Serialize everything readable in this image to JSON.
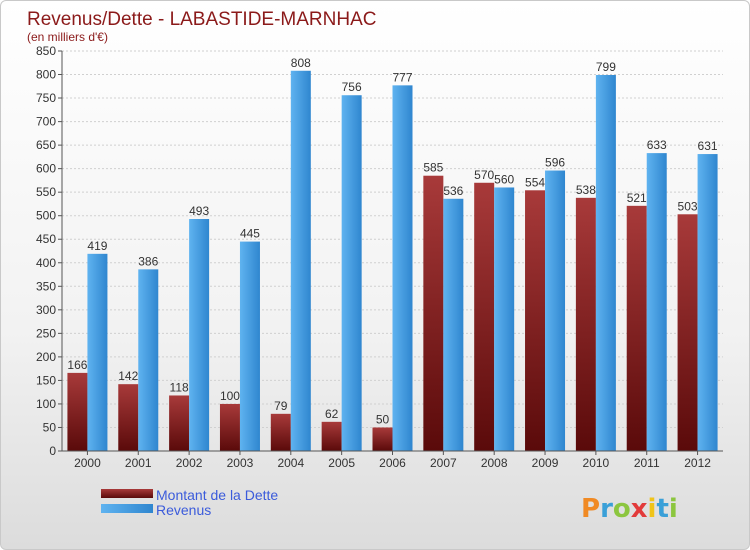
{
  "chart_data": {
    "type": "bar",
    "title": "Revenus/Dette - LABASTIDE-MARNHAC",
    "subtitle": "(en milliers d'€)",
    "categories": [
      "2000",
      "2001",
      "2002",
      "2003",
      "2004",
      "2005",
      "2006",
      "2007",
      "2008",
      "2009",
      "2010",
      "2011",
      "2012"
    ],
    "series": [
      {
        "name": "Montant de la Dette",
        "color": "#8b1a1a",
        "values": [
          166,
          142,
          118,
          100,
          79,
          62,
          50,
          585,
          570,
          554,
          538,
          521,
          503
        ]
      },
      {
        "name": "Revenus",
        "color": "#4a9fe0",
        "values": [
          419,
          386,
          493,
          445,
          808,
          756,
          777,
          536,
          560,
          596,
          799,
          633,
          631
        ]
      }
    ],
    "ylim": [
      0,
      850
    ],
    "ytick_step": 50,
    "grid": true,
    "legend_position": "bottom-left"
  },
  "logo": {
    "text": "Proxiti"
  }
}
